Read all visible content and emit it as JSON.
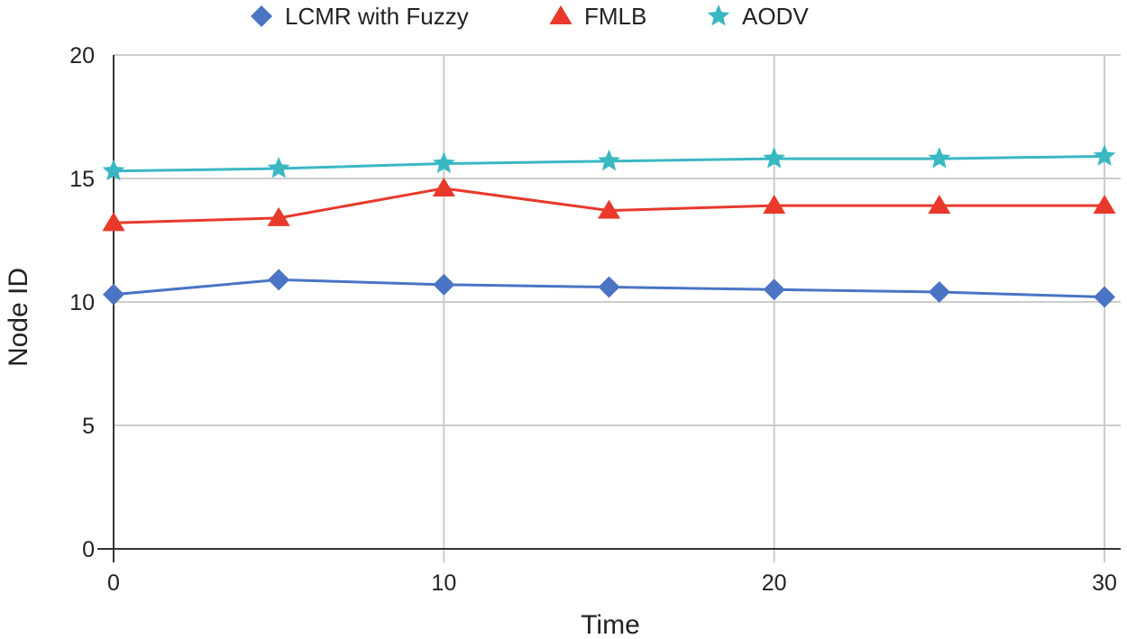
{
  "chart_data": {
    "type": "line",
    "title": "",
    "xlabel": "Time",
    "ylabel": "Node ID",
    "xlim": [
      0,
      30
    ],
    "ylim": [
      0,
      20
    ],
    "x_ticks": [
      0,
      10,
      20,
      30
    ],
    "y_ticks": [
      0,
      5,
      10,
      15,
      20
    ],
    "grid": true,
    "legend_position": "top",
    "x": [
      0,
      5,
      10,
      15,
      20,
      25,
      30
    ],
    "series": [
      {
        "name": "LCMR with Fuzzy",
        "marker": "diamond",
        "color": "#4a74c4",
        "values": [
          10.3,
          10.9,
          10.7,
          10.6,
          10.5,
          10.4,
          10.2
        ]
      },
      {
        "name": "FMLB",
        "marker": "triangle",
        "color": "#e8392b",
        "values": [
          13.2,
          13.4,
          14.6,
          13.7,
          13.9,
          13.9,
          13.9
        ]
      },
      {
        "name": "AODV",
        "marker": "star",
        "color": "#3ab8c2",
        "values": [
          15.3,
          15.4,
          15.6,
          15.7,
          15.8,
          15.8,
          15.9
        ]
      }
    ]
  }
}
